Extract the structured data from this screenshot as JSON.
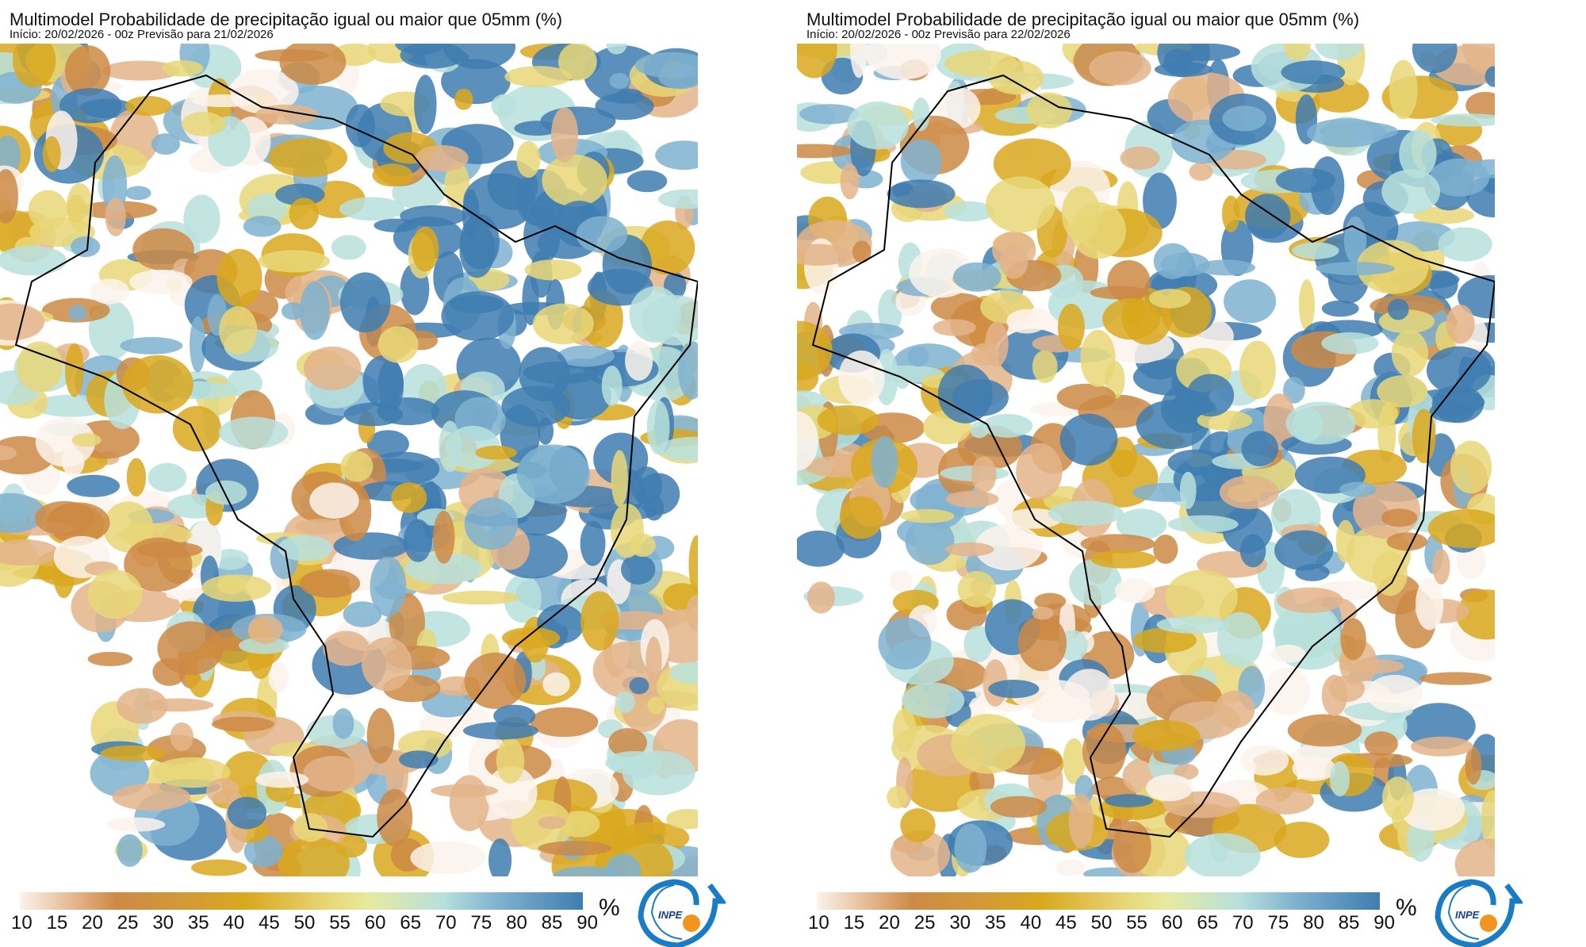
{
  "panels": [
    {
      "title": "Multimodel Probabilidade de precipitação igual ou maior que 05mm (%)",
      "subtitle": "Início: 20/02/2026 - 00z  Previsão para 21/02/2026",
      "seed": 7
    },
    {
      "title": "Multimodel Probabilidade de precipitação igual ou maior que 05mm (%)",
      "subtitle": "Início: 20/02/2026 - 00z  Previsão para 22/02/2026",
      "seed": 19
    }
  ],
  "colorbar": {
    "ticks": [
      "10",
      "15",
      "20",
      "25",
      "30",
      "35",
      "40",
      "45",
      "50",
      "55",
      "60",
      "65",
      "70",
      "75",
      "80",
      "85",
      "90"
    ],
    "unit": "%",
    "colors": [
      "#fbf3ec",
      "#e3b48a",
      "#cd8a45",
      "#d9a81e",
      "#e8d778",
      "#b8e0dc",
      "#7fb2d0",
      "#3f7db0"
    ]
  },
  "logo": {
    "text": "INPE"
  }
}
